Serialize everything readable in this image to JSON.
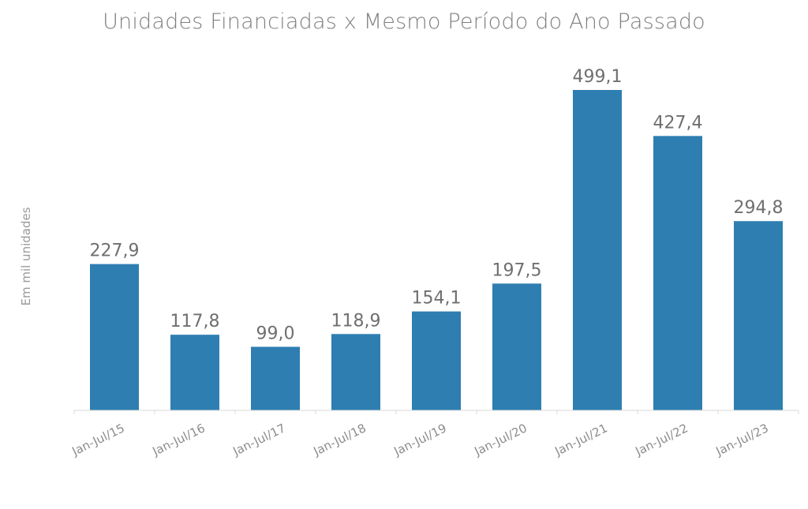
{
  "chart_data": {
    "type": "bar",
    "title": "Unidades Financiadas x Mesmo Período do Ano Passado",
    "xlabel": "",
    "ylabel": "Em mil unidades",
    "categories": [
      "Jan-Jul/15",
      "Jan-Jul/16",
      "Jan-Jul/17",
      "Jan-Jul/18",
      "Jan-Jul/19",
      "Jan-Jul/20",
      "Jan-Jul/21",
      "Jan-Jul/22",
      "Jan-Jul/23"
    ],
    "values": [
      227.9,
      117.8,
      99.0,
      118.9,
      154.1,
      197.5,
      499.1,
      427.4,
      294.8
    ],
    "value_labels": [
      "227,9",
      "117,8",
      "99,0",
      "118,9",
      "154,1",
      "197,5",
      "499,1",
      "427,4",
      "294,8"
    ],
    "ylim": [
      0,
      500
    ],
    "grid": false,
    "legend": "none",
    "bar_color": "#2e7eb1"
  }
}
